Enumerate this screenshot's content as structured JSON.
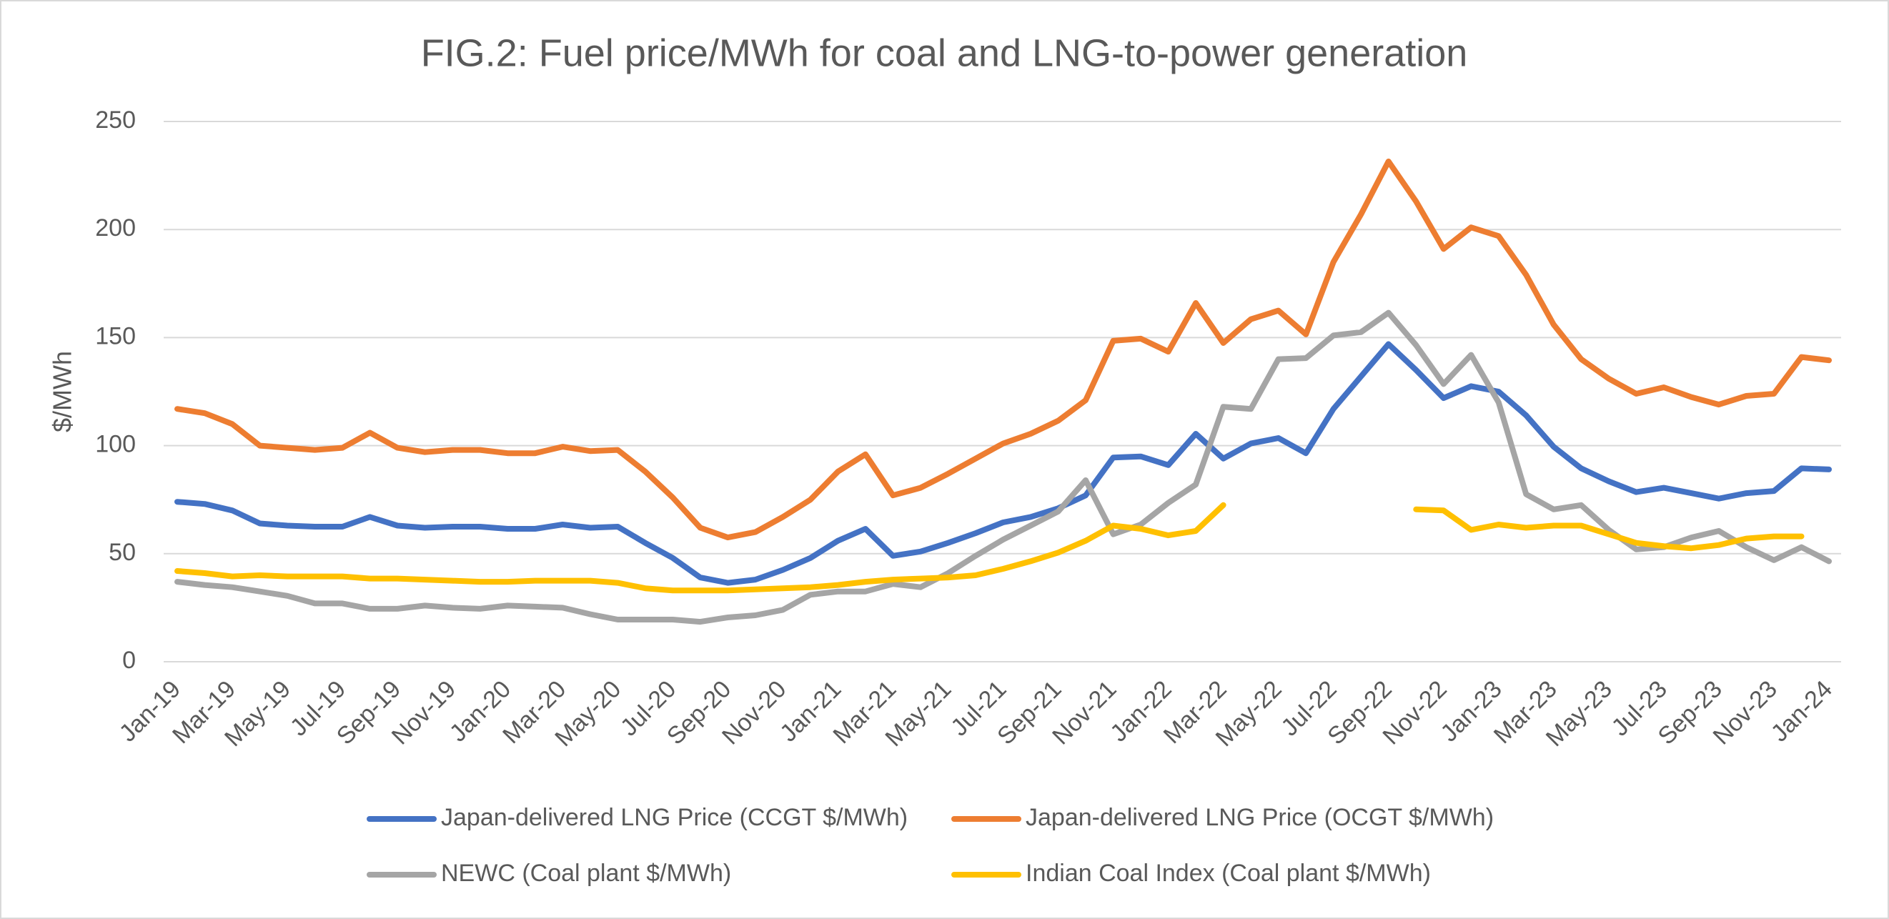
{
  "chart_data": {
    "type": "line",
    "title": "FIG.2: Fuel price/MWh for coal and LNG-to-power generation",
    "ylabel": "$/MWh",
    "categories": [
      "Jan-19",
      null,
      "Mar-19",
      null,
      "May-19",
      null,
      "Jul-19",
      null,
      "Sep-19",
      null,
      "Nov-19",
      null,
      "Jan-20",
      null,
      "Mar-20",
      null,
      "May-20",
      null,
      "Jul-20",
      null,
      "Sep-20",
      null,
      "Nov-20",
      null,
      "Jan-21",
      null,
      "Mar-21",
      null,
      "May-21",
      null,
      "Jul-21",
      null,
      "Sep-21",
      null,
      "Nov-21",
      null,
      "Jan-22",
      null,
      "Mar-22",
      null,
      "May-22",
      null,
      "Jul-22",
      null,
      "Sep-22",
      null,
      "Nov-22",
      null,
      "Jan-23",
      null,
      "Mar-23",
      null,
      "May-23",
      null,
      "Jul-23",
      null,
      "Sep-23",
      null,
      "Nov-23",
      null,
      "Jan-24"
    ],
    "series": [
      {
        "name": "Japan-delivered LNG Price (CCGT $/MWh)",
        "color": "#4472c4",
        "values": [
          74,
          73,
          70,
          64,
          63,
          62.5,
          62.5,
          67,
          63,
          62,
          62.5,
          62.5,
          61.5,
          61.5,
          63.5,
          62,
          62.5,
          55,
          48,
          39,
          36.5,
          38,
          42.5,
          48,
          56,
          61.5,
          49,
          51,
          55,
          59.5,
          64.5,
          67,
          71,
          77,
          94.5,
          95,
          91,
          105.5,
          94,
          101,
          103.5,
          96.5,
          117,
          132,
          147,
          135,
          122,
          127.5,
          125,
          114,
          99.5,
          89.5,
          83.5,
          78.5,
          80.5,
          78,
          75.5,
          78,
          79,
          89.5,
          89
        ]
      },
      {
        "name": "Japan-delivered LNG Price (OCGT $/MWh)",
        "color": "#ed7d31",
        "values": [
          117,
          115,
          110,
          100,
          99,
          98,
          99,
          106,
          99,
          97,
          98,
          98,
          96.5,
          96.5,
          99.5,
          97.5,
          98,
          88,
          76,
          62,
          57.5,
          60,
          67,
          75,
          88,
          96,
          77,
          80.5,
          87,
          94,
          101,
          105.5,
          111.5,
          121,
          148.5,
          149.5,
          143.5,
          166,
          147.5,
          158.5,
          162.5,
          151.5,
          185,
          207,
          231.5,
          213,
          191,
          201,
          197,
          179,
          156,
          140,
          131,
          124,
          127,
          122.5,
          119,
          123,
          124,
          141,
          139.5
        ]
      },
      {
        "name": "NEWC (Coal plant $/MWh)",
        "color": "#a5a5a5",
        "values": [
          37,
          35.5,
          34.5,
          32.5,
          30.5,
          27,
          27,
          24.5,
          24.5,
          26,
          25,
          24.5,
          26,
          25.5,
          25,
          22,
          19.5,
          19.5,
          19.5,
          18.5,
          20.5,
          21.5,
          24,
          31,
          32.5,
          32.5,
          36,
          34.5,
          41,
          49,
          56.5,
          63,
          69.5,
          84,
          59,
          63.5,
          73.5,
          82,
          118,
          117,
          140,
          140.5,
          151,
          152.5,
          161.5,
          146.5,
          128.5,
          142,
          120,
          77.5,
          70.5,
          72.5,
          61,
          52,
          53,
          57.5,
          60.5,
          53,
          47,
          53,
          46.5
        ]
      },
      {
        "name": "Indian Coal Index (Coal plant $/MWh)",
        "color": "#ffc000",
        "values": [
          42,
          41,
          39.5,
          40,
          39.5,
          39.5,
          39.5,
          38.5,
          38.5,
          38,
          37.5,
          37,
          37,
          37.5,
          37.5,
          37.5,
          36.5,
          34,
          33,
          33,
          33,
          33.5,
          34,
          34.5,
          35.5,
          37,
          38,
          38.5,
          39,
          40,
          43,
          46.5,
          50.5,
          56,
          63,
          61.5,
          58.5,
          60.5,
          72.5,
          null,
          null,
          null,
          null,
          null,
          null,
          70.5,
          70,
          61,
          63.5,
          62,
          63,
          63,
          59,
          55,
          53.5,
          52.5,
          54,
          57,
          58,
          58,
          null
        ]
      }
    ],
    "ylim": [
      0,
      250
    ],
    "yticks": [
      0,
      50,
      100,
      150,
      200,
      250
    ],
    "grid": true,
    "legend": "bottom"
  }
}
